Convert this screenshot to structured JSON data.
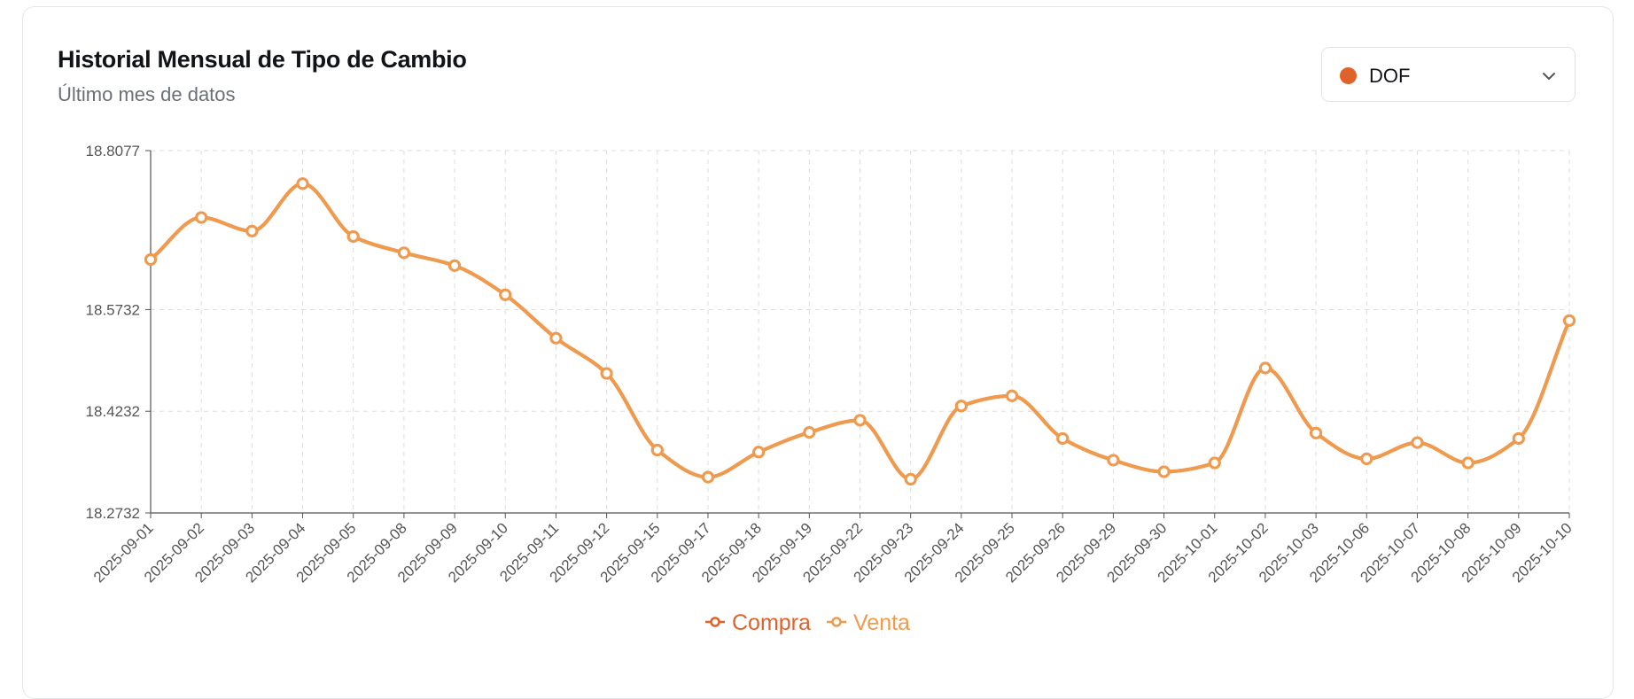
{
  "header": {
    "title": "Historial Mensual de Tipo de Cambio",
    "subtitle": "Último mes de datos"
  },
  "source_select": {
    "selected": "DOF",
    "dot_color": "#e0622a"
  },
  "colors": {
    "compra": "#e0622a",
    "venta": "#ef9a4d",
    "axis": "#555555",
    "grid": "#dddddd"
  },
  "chart_data": {
    "type": "line",
    "title": "",
    "xlabel": "",
    "ylabel": "",
    "ylim": [
      18.2732,
      18.8077
    ],
    "y_ticks": [
      "18.2732",
      "18.4232",
      "18.5732",
      "18.8077"
    ],
    "grid": true,
    "legend_position": "bottom-center",
    "categories": [
      "2025-09-01",
      "2025-09-02",
      "2025-09-03",
      "2025-09-04",
      "2025-09-05",
      "2025-09-08",
      "2025-09-09",
      "2025-09-10",
      "2025-09-11",
      "2025-09-12",
      "2025-09-15",
      "2025-09-17",
      "2025-09-18",
      "2025-09-19",
      "2025-09-22",
      "2025-09-23",
      "2025-09-24",
      "2025-09-25",
      "2025-09-26",
      "2025-09-29",
      "2025-09-30",
      "2025-10-01",
      "2025-10-02",
      "2025-10-03",
      "2025-10-06",
      "2025-10-07",
      "2025-10-08",
      "2025-10-09",
      "2025-10-10"
    ],
    "series": [
      {
        "name": "Compra",
        "values": [
          18.647,
          18.709,
          18.689,
          18.759,
          18.681,
          18.657,
          18.638,
          18.595,
          18.531,
          18.479,
          18.366,
          18.326,
          18.363,
          18.392,
          18.41,
          18.323,
          18.431,
          18.446,
          18.383,
          18.351,
          18.334,
          18.347,
          18.487,
          18.391,
          18.353,
          18.377,
          18.347,
          18.383,
          18.557
        ]
      },
      {
        "name": "Venta",
        "values": [
          18.647,
          18.709,
          18.689,
          18.759,
          18.681,
          18.657,
          18.638,
          18.595,
          18.531,
          18.479,
          18.366,
          18.326,
          18.363,
          18.392,
          18.41,
          18.323,
          18.431,
          18.446,
          18.383,
          18.351,
          18.334,
          18.347,
          18.487,
          18.391,
          18.353,
          18.377,
          18.347,
          18.383,
          18.557
        ]
      }
    ]
  }
}
